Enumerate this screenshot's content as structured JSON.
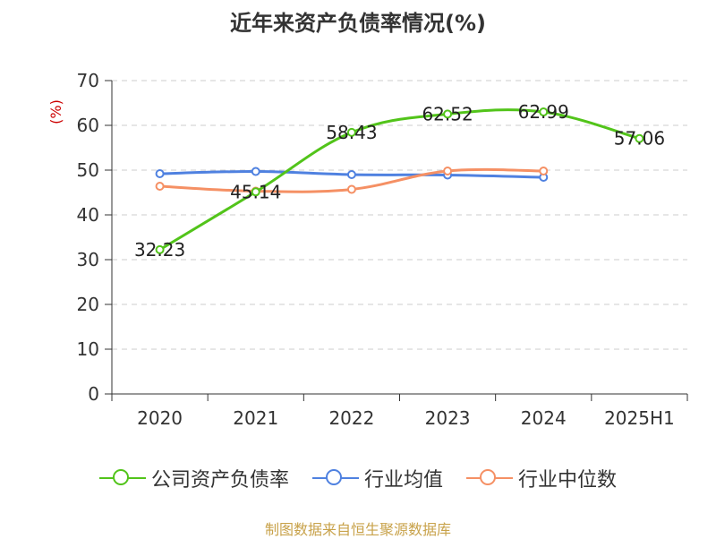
{
  "title": "近年来资产负债率情况(%)",
  "source": "制图数据来自恒生聚源数据库",
  "chart_data": {
    "type": "line",
    "title": "近年来资产负债率情况(%)",
    "ylabel": "(%)",
    "xlabel": "",
    "categories": [
      "2020",
      "2021",
      "2022",
      "2023",
      "2024",
      "2025H1"
    ],
    "ylim": [
      0,
      70
    ],
    "yticks": [
      0,
      10,
      20,
      30,
      40,
      50,
      60,
      70
    ],
    "grid": true,
    "legend_position": "bottom",
    "series": [
      {
        "name": "公司资产负债率",
        "color": "#52c41a",
        "values": [
          32.23,
          45.14,
          58.43,
          62.52,
          62.99,
          57.06
        ],
        "labels": [
          "32.23",
          "45.14",
          "58.43",
          "62.52",
          "62.99",
          "57.06"
        ]
      },
      {
        "name": "行业均值",
        "color": "#4f81e0",
        "values": [
          49.2,
          49.7,
          49.0,
          48.9,
          48.4,
          null
        ]
      },
      {
        "name": "行业中位数",
        "color": "#f59064",
        "values": [
          46.4,
          45.3,
          45.7,
          49.8,
          49.8,
          null
        ]
      }
    ]
  }
}
